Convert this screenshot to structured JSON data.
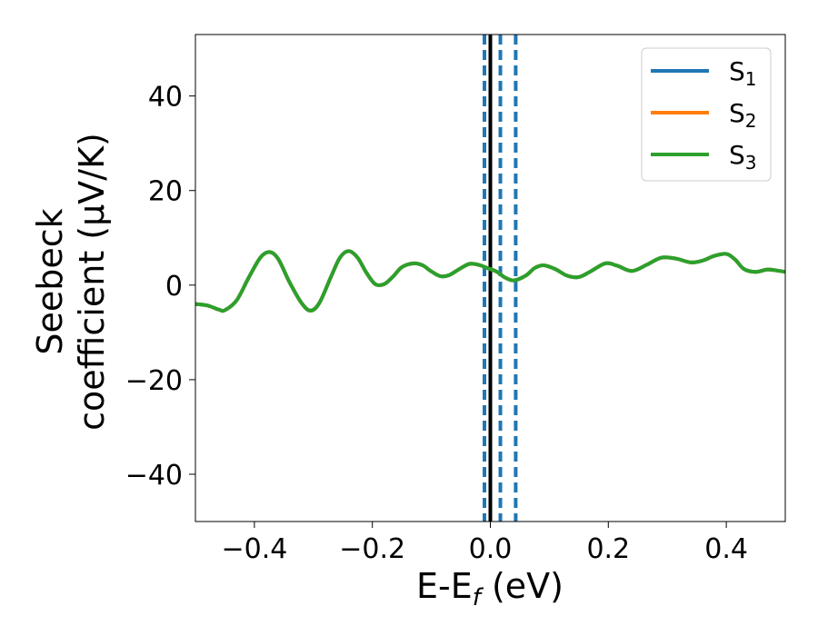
{
  "chart_data": {
    "type": "line",
    "xlabel": {
      "main": "E-E",
      "sub": "f",
      "suffix": " (eV)"
    },
    "ylabel": {
      "line1": "Seebeck",
      "line2": "coefficient  (μV/K)"
    },
    "xlim": [
      -0.5,
      0.5
    ],
    "ylim": [
      -50,
      53
    ],
    "xticks": [
      -0.4,
      -0.2,
      0.0,
      0.2,
      0.4
    ],
    "xtick_labels": [
      "−0.4",
      "−0.2",
      "0.0",
      "0.2",
      "0.4"
    ],
    "yticks": [
      -40,
      -20,
      0,
      20,
      40
    ],
    "ytick_labels": [
      "−40",
      "−20",
      "0",
      "20",
      "40"
    ],
    "legend": {
      "placement": "top-right",
      "entries": [
        {
          "base": "S",
          "sub": "1",
          "color": "#1f77b4"
        },
        {
          "base": "S",
          "sub": "2",
          "color": "#ff7f0e"
        },
        {
          "base": "S",
          "sub": "3",
          "color": "#2ca02c"
        }
      ]
    },
    "series": [
      {
        "name": "S1",
        "color": "#1f77b4"
      },
      {
        "name": "S2",
        "color": "#ff7f0e"
      },
      {
        "name": "S3",
        "color": "#2ca02c"
      }
    ],
    "x": [
      -0.5,
      -0.48,
      -0.46,
      -0.45,
      -0.43,
      -0.41,
      -0.39,
      -0.375,
      -0.36,
      -0.34,
      -0.32,
      -0.305,
      -0.29,
      -0.27,
      -0.255,
      -0.24,
      -0.225,
      -0.21,
      -0.195,
      -0.18,
      -0.165,
      -0.15,
      -0.13,
      -0.115,
      -0.1,
      -0.085,
      -0.07,
      -0.05,
      -0.035,
      -0.02,
      -0.005,
      0.01,
      0.025,
      0.04,
      0.06,
      0.075,
      0.09,
      0.11,
      0.13,
      0.15,
      0.17,
      0.195,
      0.215,
      0.24,
      0.265,
      0.29,
      0.315,
      0.34,
      0.36,
      0.38,
      0.4,
      0.415,
      0.43,
      0.45,
      0.47,
      0.49,
      0.5
    ],
    "y": [
      -4,
      -4.3,
      -5.2,
      -5.3,
      -3.2,
      1.5,
      5.8,
      7.0,
      5.6,
      0.5,
      -3.8,
      -5.4,
      -3.8,
      1.8,
      5.8,
      7.2,
      5.8,
      2.6,
      0.2,
      0.2,
      1.8,
      3.8,
      4.6,
      4.2,
      2.9,
      1.9,
      2.1,
      3.6,
      4.5,
      4.3,
      3.6,
      2.9,
      1.6,
      1.0,
      2.0,
      3.6,
      4.2,
      3.4,
      2.0,
      1.7,
      2.9,
      4.6,
      4.1,
      3.0,
      4.3,
      5.8,
      5.6,
      4.8,
      5.2,
      6.2,
      6.6,
      5.4,
      3.4,
      2.8,
      3.3,
      3.0,
      2.8
    ],
    "vlines": [
      {
        "x": -0.01,
        "style": "dashed",
        "color": "#1f77b4"
      },
      {
        "x": 0.0,
        "style": "solid",
        "color": "#000000"
      },
      {
        "x": 0.017,
        "style": "dashed",
        "color": "#1f77b4"
      },
      {
        "x": 0.043,
        "style": "dashed",
        "color": "#1f77b4"
      }
    ],
    "grid": false
  }
}
